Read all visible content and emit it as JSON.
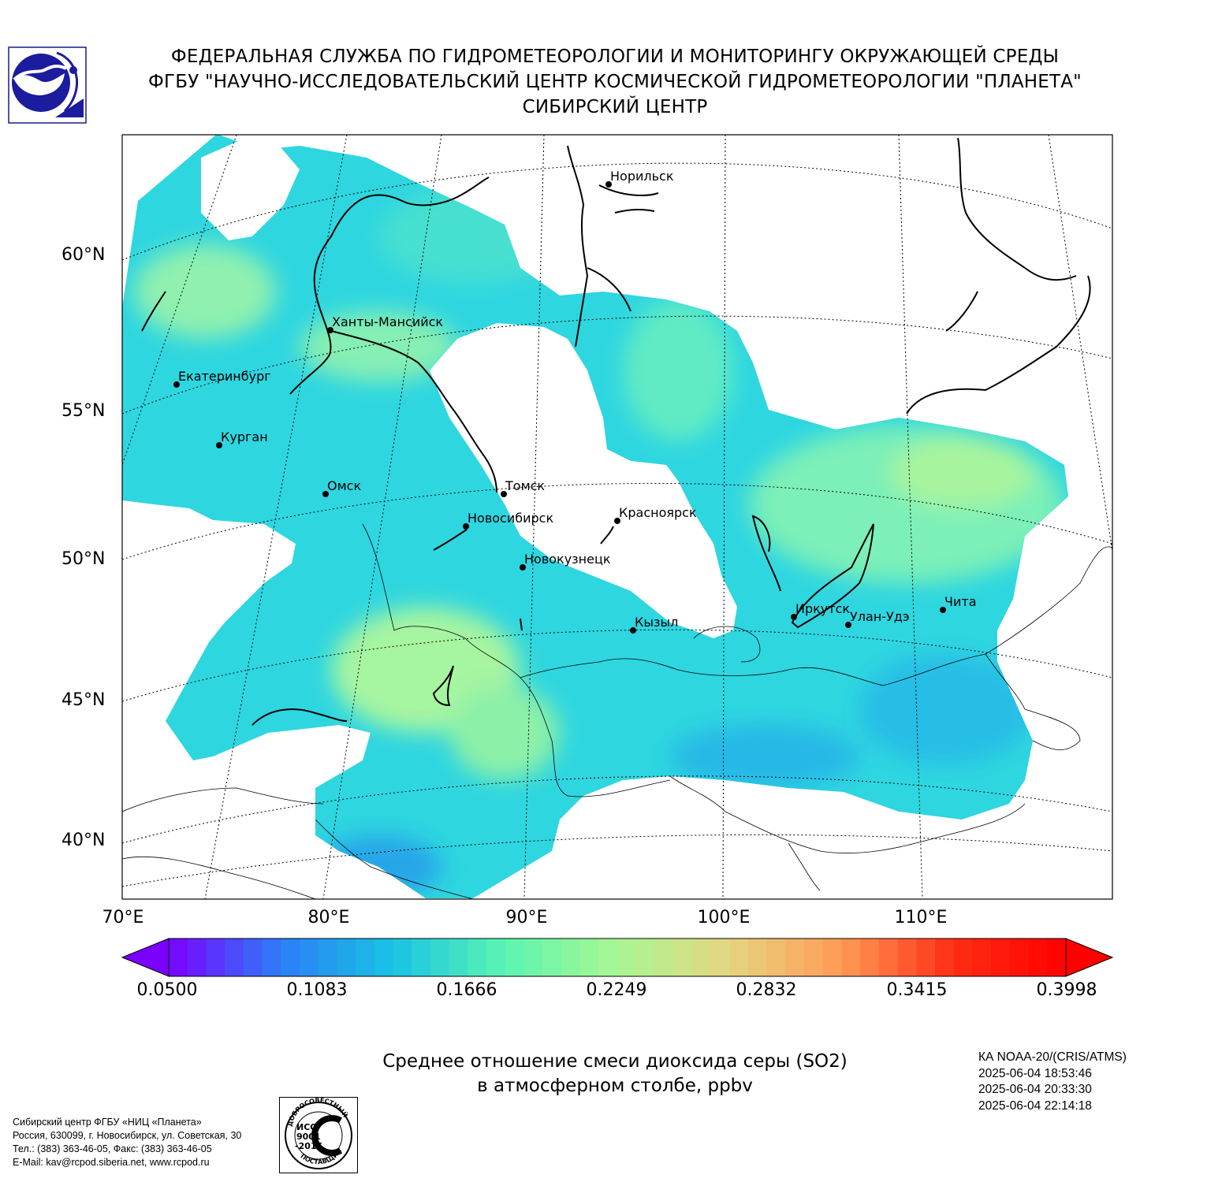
{
  "header": {
    "line1": "ФЕДЕРАЛЬНАЯ СЛУЖБА ПО ГИДРОМЕТЕОРОЛОГИИ И МОНИТОРИНГУ ОКРУЖАЮЩЕЙ СРЕДЫ",
    "line2": "ФГБУ \"НАУЧНО-ИССЛЕДОВАТЕЛЬСКИЙ ЦЕНТР КОСМИЧЕСКОЙ ГИДРОМЕТЕОРОЛОГИИ \"ПЛАНЕТА\"",
    "line3": "СИБИРСКИЙ ЦЕНТР"
  },
  "map": {
    "lat_labels": [
      "60°N",
      "55°N",
      "50°N",
      "45°N",
      "40°N"
    ],
    "lon_labels": [
      "70°E",
      "80°E",
      "90°E",
      "100°E",
      "110°E"
    ],
    "cities": [
      {
        "name": "Норильск"
      },
      {
        "name": "Ханты-Мансийск"
      },
      {
        "name": "Екатеринбург"
      },
      {
        "name": "Курган"
      },
      {
        "name": "Омск"
      },
      {
        "name": "Томск"
      },
      {
        "name": "Новосибирск"
      },
      {
        "name": "Красноярск"
      },
      {
        "name": "Новокузнецк"
      },
      {
        "name": "Кызыл"
      },
      {
        "name": "Иркутск"
      },
      {
        "name": "Улан-Удэ"
      },
      {
        "name": "Чита"
      }
    ]
  },
  "colorbar": {
    "ticks": [
      "0.0500",
      "0.1083",
      "0.1666",
      "0.2249",
      "0.2832",
      "0.3415",
      "0.3998"
    ],
    "colors": [
      "#7a00ff",
      "#2c7ef7",
      "#18c3e3",
      "#5cf5b2",
      "#a8f692",
      "#e5d580",
      "#ff9a55",
      "#ff2d14",
      "#ff0000"
    ]
  },
  "caption": {
    "line1": "Среднее отношение смеси диоксида серы (SO2)",
    "line2": "в атмосферном столбе, ppbv"
  },
  "satellite": {
    "name": "КА NOAA-20/(CRIS/ATMS)",
    "time1": "2025-06-04 18:53:46",
    "time2": "2025-06-04 20:33:30",
    "time3": "2025-06-04 22:14:18"
  },
  "address": {
    "line1": "Сибирский центр ФГБУ «НИЦ «Планета»",
    "line2": "Россия, 630099, г. Новосибирск, ул. Советская, 30",
    "line3": "Тел.: (383) 363-46-05, Факс: (383) 363-46-05",
    "line4": "E-Mail: kav@rcpod.siberia.net, www.rcpod.ru"
  },
  "iso_stamp": {
    "top": "ДОБРОСОВЕСТНЫЙ",
    "mid1": "ИСО",
    "mid2": "9001",
    "mid3": "-2015",
    "bottom": "ПОСТАВЩИК"
  }
}
